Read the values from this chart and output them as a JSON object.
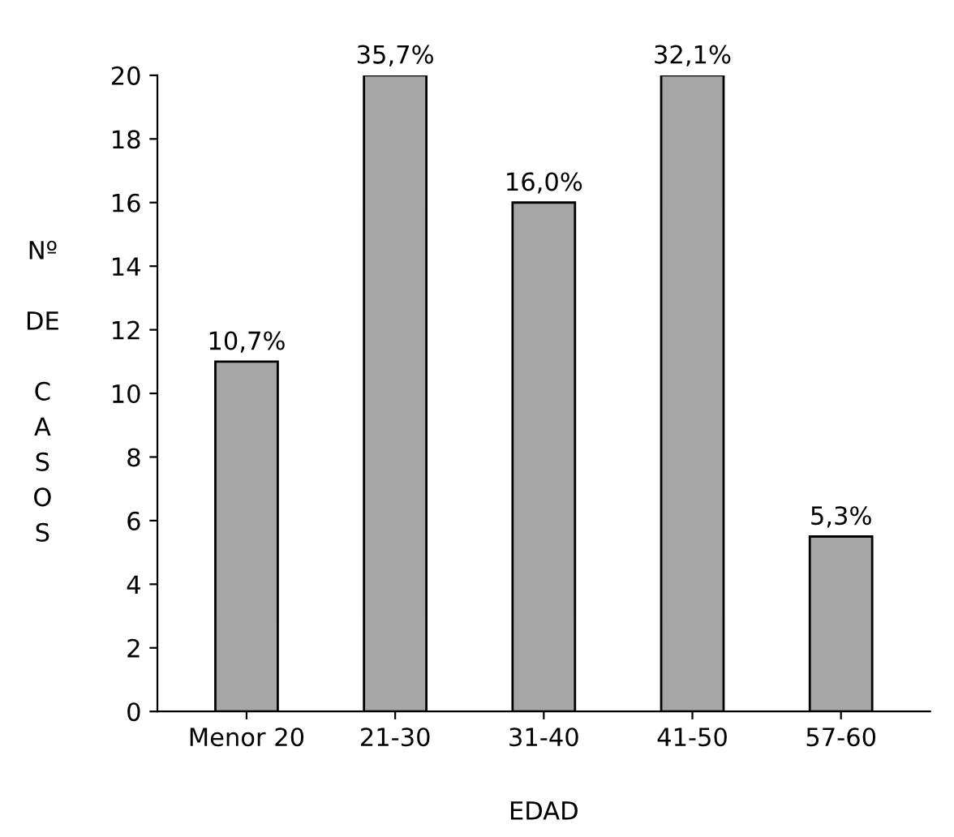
{
  "chart_data": {
    "type": "bar",
    "xlabel": "EDAD",
    "ylabel": "Nº DE CASOS",
    "categories": [
      "Menor 20",
      "21-30",
      "31-40",
      "41-50",
      "57-60"
    ],
    "values": [
      11,
      20,
      16,
      20,
      5.5
    ],
    "annotations": [
      {
        "text": "10,7%",
        "x": "Menor 20",
        "y": 11
      },
      {
        "text": "35,7%",
        "x": "21-30",
        "y": 20
      },
      {
        "text": "16,0%",
        "x": "31-40",
        "y": 16
      },
      {
        "text": "32,1%",
        "x": "41-50",
        "y": 20
      },
      {
        "text": "5,3%",
        "x": "57-60",
        "y": 5.5
      }
    ],
    "color": "#a6a6a6",
    "ylim": [
      0,
      20
    ],
    "yticks": [
      0,
      2,
      4,
      6,
      8,
      10,
      12,
      14,
      16,
      18,
      20
    ],
    "grid": false,
    "legend": false
  }
}
